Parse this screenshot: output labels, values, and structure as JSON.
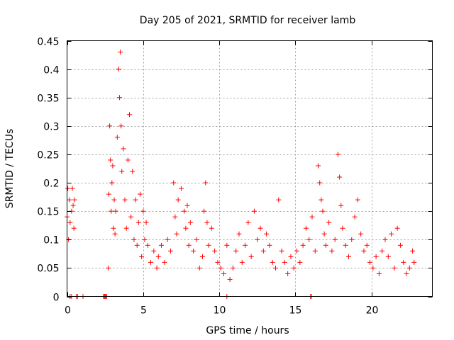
{
  "chart_data": {
    "type": "scatter",
    "title": "Day 205 of 2021, SRMTID for receiver lamb",
    "xlabel": "GPS time / hours",
    "ylabel": "SRMTID / TECUs",
    "xlim": [
      0,
      24
    ],
    "ylim": [
      0,
      0.45
    ],
    "xticks": [
      0,
      5,
      10,
      15,
      20
    ],
    "xtick_labels": [
      "0",
      "5",
      "10",
      "15",
      "20"
    ],
    "yticks": [
      0,
      0.05,
      0.1,
      0.15,
      0.2,
      0.25,
      0.3,
      0.35,
      0.4,
      0.45
    ],
    "ytick_labels": [
      "0",
      "0.05",
      "0.1",
      "0.15",
      "0.2",
      "0.25",
      "0.3",
      "0.35",
      "0.4",
      "0.45"
    ],
    "grid": true,
    "marker": "+",
    "colors": {
      "series": "#ff0000",
      "frame": "#000000",
      "grid": "#a0a0a0"
    },
    "series": [
      {
        "name": "SRMTID",
        "x": [
          0.0,
          0.05,
          0.1,
          0.15,
          0.2,
          0.3,
          0.35,
          0.4,
          0.45,
          0.5,
          2.7,
          2.75,
          2.8,
          2.85,
          2.9,
          2.95,
          3.0,
          3.05,
          3.1,
          3.15,
          3.2,
          3.3,
          3.4,
          3.45,
          3.5,
          3.55,
          3.6,
          3.7,
          3.8,
          3.9,
          4.0,
          4.1,
          4.2,
          4.3,
          4.4,
          4.5,
          4.6,
          4.7,
          4.8,
          4.9,
          5.0,
          5.1,
          5.2,
          5.3,
          5.5,
          5.7,
          5.9,
          6.0,
          6.2,
          6.4,
          6.6,
          6.8,
          7.0,
          7.1,
          7.2,
          7.3,
          7.5,
          7.7,
          7.8,
          7.9,
          8.0,
          8.1,
          8.3,
          8.5,
          8.7,
          8.9,
          9.0,
          9.1,
          9.2,
          9.3,
          9.5,
          9.7,
          9.9,
          10.1,
          10.3,
          10.5,
          10.7,
          10.9,
          11.1,
          11.3,
          11.5,
          11.7,
          11.9,
          12.1,
          12.3,
          12.5,
          12.7,
          12.9,
          13.1,
          13.3,
          13.5,
          13.7,
          13.9,
          14.1,
          14.3,
          14.5,
          14.7,
          14.9,
          15.1,
          15.3,
          15.5,
          15.7,
          15.9,
          16.1,
          16.3,
          16.5,
          16.6,
          16.7,
          16.8,
          16.9,
          17.0,
          17.2,
          17.4,
          17.6,
          17.8,
          17.9,
          18.0,
          18.1,
          18.3,
          18.5,
          18.7,
          18.9,
          19.1,
          19.3,
          19.5,
          19.7,
          19.9,
          20.1,
          20.3,
          20.5,
          20.7,
          20.9,
          21.1,
          21.3,
          21.5,
          21.7,
          21.9,
          22.1,
          22.3,
          22.5,
          22.7,
          22.8
        ],
        "y": [
          0.14,
          0.19,
          0.1,
          0.17,
          0.13,
          0.15,
          0.19,
          0.16,
          0.12,
          0.17,
          0.05,
          0.18,
          0.3,
          0.24,
          0.15,
          0.2,
          0.23,
          0.12,
          0.17,
          0.11,
          0.15,
          0.28,
          0.4,
          0.35,
          0.43,
          0.3,
          0.22,
          0.26,
          0.17,
          0.12,
          0.24,
          0.32,
          0.14,
          0.22,
          0.1,
          0.17,
          0.09,
          0.13,
          0.18,
          0.07,
          0.15,
          0.1,
          0.13,
          0.09,
          0.06,
          0.08,
          0.05,
          0.07,
          0.09,
          0.06,
          0.1,
          0.08,
          0.2,
          0.14,
          0.11,
          0.17,
          0.19,
          0.15,
          0.12,
          0.16,
          0.09,
          0.13,
          0.08,
          0.1,
          0.05,
          0.07,
          0.15,
          0.2,
          0.13,
          0.09,
          0.12,
          0.08,
          0.06,
          0.05,
          0.04,
          0.09,
          0.03,
          0.05,
          0.08,
          0.11,
          0.06,
          0.09,
          0.13,
          0.07,
          0.15,
          0.1,
          0.12,
          0.08,
          0.11,
          0.09,
          0.06,
          0.05,
          0.17,
          0.08,
          0.06,
          0.04,
          0.07,
          0.05,
          0.08,
          0.06,
          0.09,
          0.12,
          0.1,
          0.14,
          0.08,
          0.23,
          0.2,
          0.17,
          0.15,
          0.11,
          0.09,
          0.13,
          0.08,
          0.1,
          0.25,
          0.21,
          0.16,
          0.12,
          0.09,
          0.07,
          0.1,
          0.14,
          0.17,
          0.11,
          0.08,
          0.09,
          0.06,
          0.05,
          0.07,
          0.04,
          0.08,
          0.1,
          0.07,
          0.11,
          0.05,
          0.12,
          0.09,
          0.06,
          0.04,
          0.05,
          0.08,
          0.06
        ]
      }
    ],
    "zero_points_x": [
      0.2,
      0.3,
      0.6,
      0.7,
      1.05,
      2.4,
      2.45,
      2.5,
      2.55,
      2.6,
      10.5,
      16.0,
      16.05
    ]
  }
}
